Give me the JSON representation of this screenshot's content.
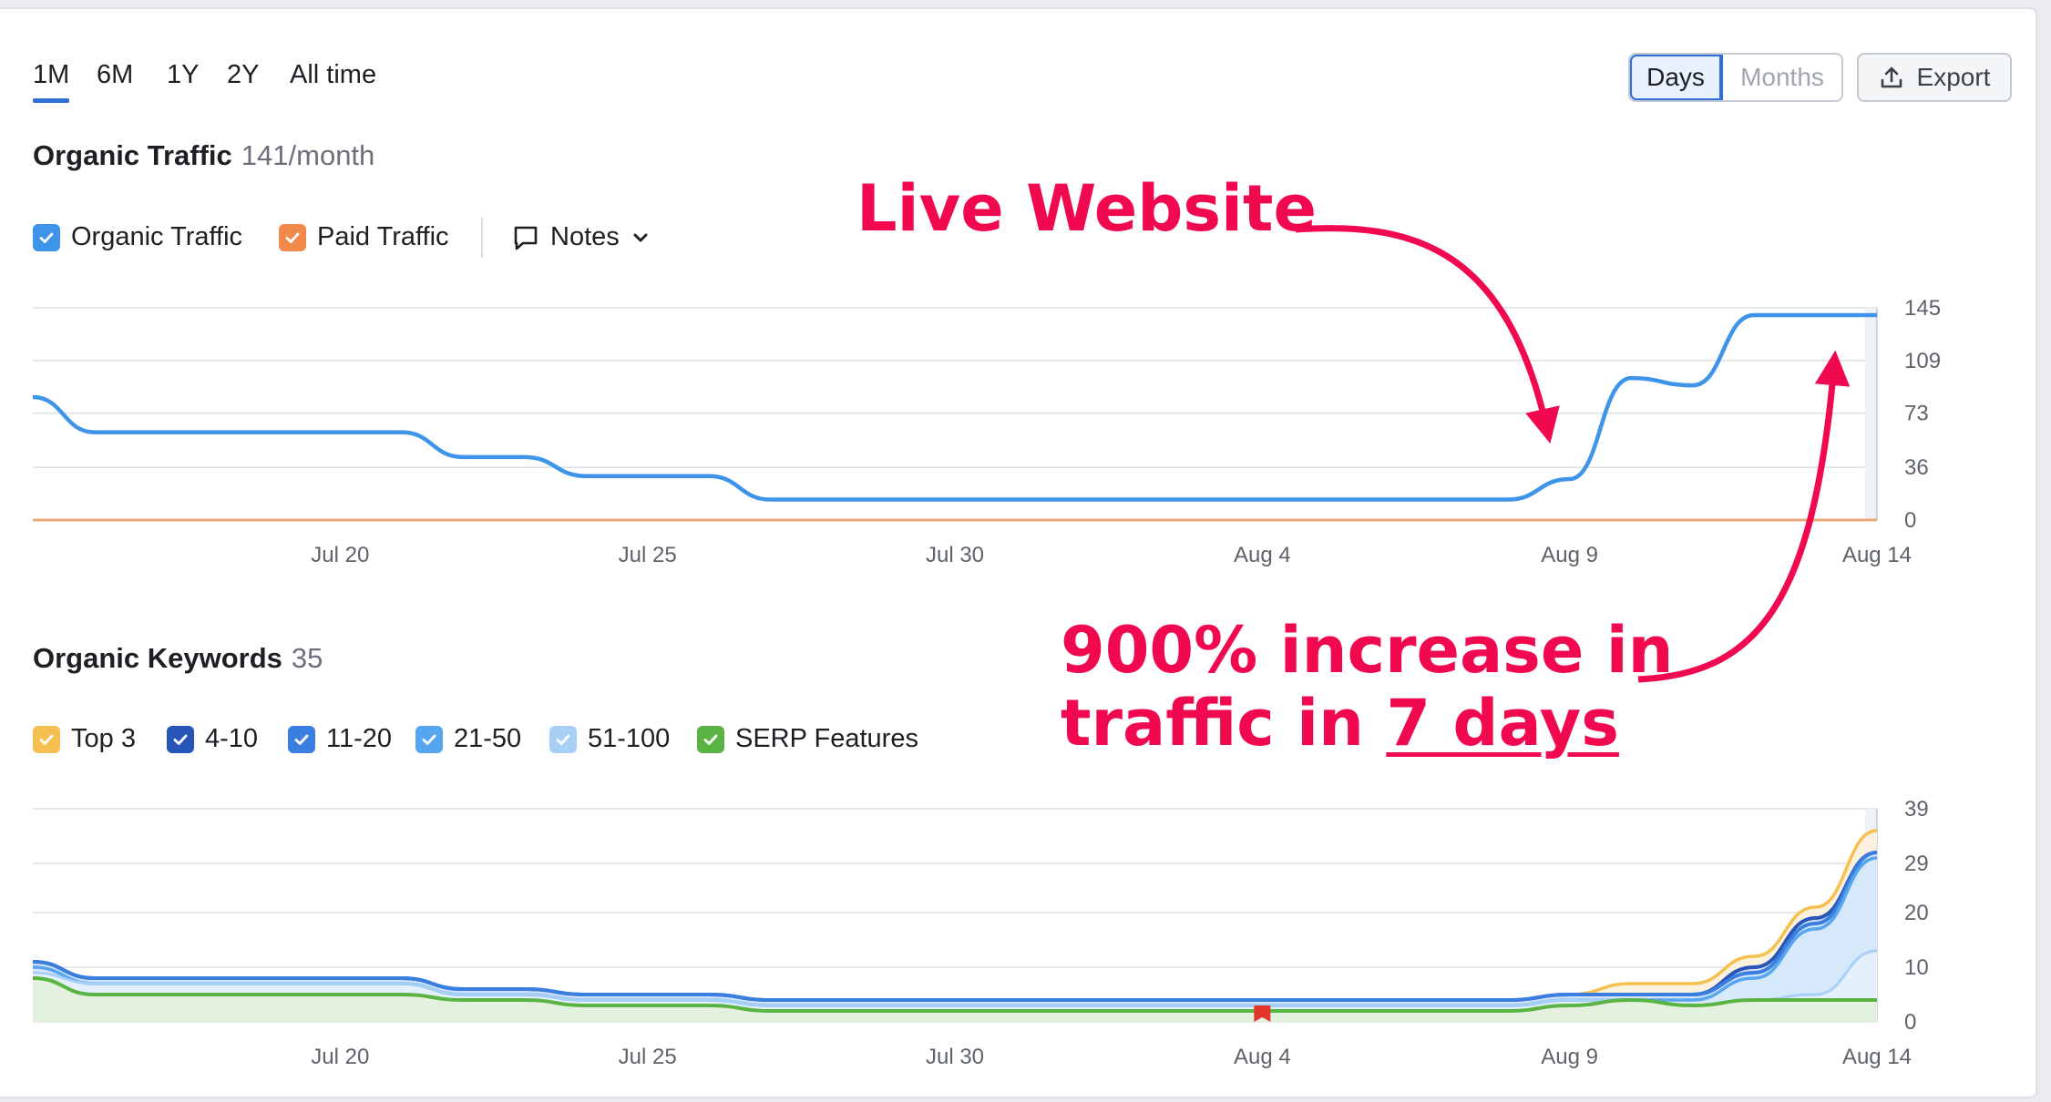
{
  "periods": [
    "1M",
    "6M",
    "1Y",
    "2Y",
    "All time"
  ],
  "active_period": "1M",
  "view_toggle": {
    "days": "Days",
    "months": "Months",
    "active": "Days"
  },
  "export_label": "Export",
  "traffic": {
    "title": "Organic Traffic",
    "metric": "141/month",
    "legend": [
      {
        "label": "Organic Traffic",
        "color": "#3d94e8",
        "checked": true
      },
      {
        "label": "Paid Traffic",
        "color": "#f0894a",
        "checked": true
      }
    ],
    "notes_label": "Notes"
  },
  "keywords": {
    "title": "Organic Keywords",
    "metric": "35",
    "legend": [
      {
        "label": "Top 3",
        "color": "#f5c04f",
        "checked": true
      },
      {
        "label": "4-10",
        "color": "#2756b8",
        "checked": true
      },
      {
        "label": "11-20",
        "color": "#3a7fe0",
        "checked": true
      },
      {
        "label": "21-50",
        "color": "#56a5ee",
        "checked": true
      },
      {
        "label": "51-100",
        "color": "#a8d0f6",
        "checked": true
      },
      {
        "label": "SERP Features",
        "color": "#5ab443",
        "checked": true
      }
    ]
  },
  "annotations": {
    "live": "Live Website",
    "increase_line1": "900% increase in",
    "increase_line2_prefix": "traffic in",
    "increase_line2_emph": "7 days"
  },
  "chart_data": [
    {
      "type": "line",
      "x": [
        "Jul 15",
        "Jul 16",
        "Jul 17",
        "Jul 18",
        "Jul 19",
        "Jul 20",
        "Jul 21",
        "Jul 22",
        "Jul 23",
        "Jul 24",
        "Jul 25",
        "Jul 26",
        "Jul 27",
        "Jul 28",
        "Jul 29",
        "Jul 30",
        "Jul 31",
        "Aug 1",
        "Aug 2",
        "Aug 3",
        "Aug 4",
        "Aug 5",
        "Aug 6",
        "Aug 7",
        "Aug 8",
        "Aug 9",
        "Aug 10",
        "Aug 11",
        "Aug 12",
        "Aug 13",
        "Aug 14"
      ],
      "x_tick_labels": [
        "Jul 20",
        "Jul 25",
        "Jul 30",
        "Aug 4",
        "Aug 9",
        "Aug 14"
      ],
      "series": [
        {
          "name": "Organic Traffic",
          "color": "#3d94e8",
          "values": [
            84,
            60,
            60,
            60,
            60,
            60,
            60,
            43,
            43,
            30,
            30,
            30,
            14,
            14,
            14,
            14,
            14,
            14,
            14,
            14,
            14,
            14,
            14,
            14,
            14,
            28,
            97,
            92,
            140,
            140,
            140
          ]
        },
        {
          "name": "Paid Traffic",
          "color": "#f0894a",
          "values": [
            0,
            0,
            0,
            0,
            0,
            0,
            0,
            0,
            0,
            0,
            0,
            0,
            0,
            0,
            0,
            0,
            0,
            0,
            0,
            0,
            0,
            0,
            0,
            0,
            0,
            0,
            0,
            0,
            0,
            0,
            0
          ]
        }
      ],
      "y_ticks": [
        0,
        36,
        73,
        109,
        145
      ],
      "ylim": [
        0,
        145
      ],
      "grid": true
    },
    {
      "type": "area",
      "x_tick_labels": [
        "Jul 20",
        "Jul 25",
        "Jul 30",
        "Aug 4",
        "Aug 9",
        "Aug 14"
      ],
      "series": [
        {
          "name": "SERP Features",
          "color": "#5ab443",
          "values": [
            8,
            5,
            5,
            5,
            5,
            5,
            5,
            4,
            4,
            3,
            3,
            3,
            2,
            2,
            2,
            2,
            2,
            2,
            2,
            2,
            2,
            2,
            2,
            2,
            2,
            3,
            4,
            3,
            4,
            4,
            4
          ]
        },
        {
          "name": "51-100",
          "color": "#a8d0f6",
          "values": [
            9,
            7,
            7,
            7,
            7,
            7,
            7,
            5,
            5,
            4,
            4,
            4,
            3,
            3,
            3,
            3,
            3,
            3,
            3,
            3,
            3,
            3,
            3,
            3,
            3,
            4,
            4,
            3,
            4,
            5,
            13
          ]
        },
        {
          "name": "21-50",
          "color": "#56a5ee",
          "values": [
            10,
            7,
            7,
            7,
            7,
            7,
            7,
            5,
            5,
            4,
            4,
            4,
            3,
            3,
            3,
            3,
            3,
            3,
            3,
            3,
            3,
            3,
            3,
            3,
            3,
            4,
            4,
            4,
            8,
            17,
            30
          ]
        },
        {
          "name": "11-20",
          "color": "#3a7fe0",
          "values": [
            11,
            8,
            8,
            8,
            8,
            8,
            8,
            6,
            6,
            5,
            5,
            5,
            4,
            4,
            4,
            4,
            4,
            4,
            4,
            4,
            4,
            4,
            4,
            4,
            4,
            5,
            5,
            5,
            9,
            18,
            31
          ]
        },
        {
          "name": "4-10",
          "color": "#2756b8",
          "values": [
            11,
            8,
            8,
            8,
            8,
            8,
            8,
            6,
            6,
            5,
            5,
            5,
            4,
            4,
            4,
            4,
            4,
            4,
            4,
            4,
            4,
            4,
            4,
            4,
            4,
            5,
            5,
            5,
            10,
            19,
            31
          ]
        },
        {
          "name": "Top 3",
          "color": "#f5c04f",
          "values": [
            11,
            8,
            8,
            8,
            8,
            8,
            8,
            6,
            6,
            5,
            5,
            5,
            4,
            4,
            4,
            4,
            4,
            4,
            4,
            4,
            4,
            4,
            4,
            4,
            4,
            5,
            7,
            7,
            12,
            21,
            35
          ]
        }
      ],
      "y_ticks": [
        0,
        10,
        20,
        29,
        39
      ],
      "ylim": [
        0,
        39
      ],
      "grid": true
    }
  ]
}
